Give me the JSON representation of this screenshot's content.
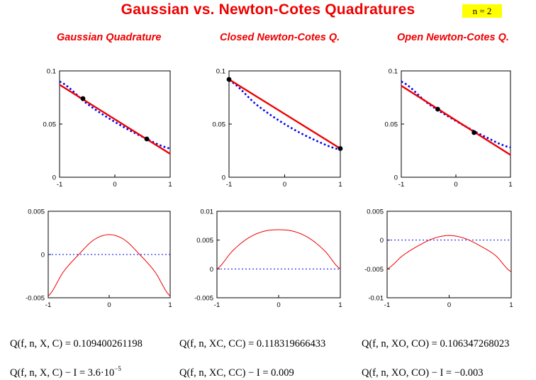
{
  "header": {
    "title": "Gaussian vs. Newton-Cotes Quadratures",
    "n_label": "n = 2"
  },
  "columns": [
    {
      "title": "Gaussian Quadrature",
      "formula_value": "Q(f, n, X, C) = 0.109400261198",
      "formula_error_prefix": "Q(f, n, X, C) − I = 3.6·10",
      "formula_error_exp": "−5"
    },
    {
      "title": "Closed Newton-Cotes Q.",
      "formula_value": "Q(f, n, XC, CC) = 0.118319666433",
      "formula_error_prefix": "Q(f, n, XC, CC) − I = 0.009",
      "formula_error_exp": ""
    },
    {
      "title": "Open Newton-Cotes Q.",
      "formula_value": "Q(f, n, XO, CO) = 0.106347268023",
      "formula_error_prefix": "Q(f, n, XO, CO) − I = −0.003",
      "formula_error_exp": ""
    }
  ],
  "colors": {
    "title": "#ee0000",
    "badge": "#ffff00",
    "approximation_line": "#ee0000",
    "function_dotted": "#0000ee",
    "error_curve": "#ee0000",
    "zero_line": "#0000ee",
    "node_marker": "#000000"
  },
  "chart_data": [
    {
      "type": "line",
      "panel": "gaussian-top",
      "xlim": [
        -1,
        1
      ],
      "ylim": [
        0,
        0.1
      ],
      "xticks": [
        "-1",
        "0",
        "1"
      ],
      "yticks": [
        "0",
        "0.05",
        "0.1"
      ],
      "series": [
        {
          "style": "dotted",
          "x": [
            -1,
            -0.5,
            0,
            0.5,
            1
          ],
          "y": [
            0.09,
            0.069,
            0.052,
            0.038,
            0.027
          ]
        },
        {
          "style": "solid",
          "x": [
            -1,
            1
          ],
          "y": [
            0.087,
            0.022
          ]
        }
      ],
      "nodes": {
        "x": [
          -0.577,
          0.577
        ],
        "y": [
          0.074,
          0.036
        ]
      }
    },
    {
      "type": "line",
      "panel": "closed-top",
      "xlim": [
        -1,
        1
      ],
      "ylim": [
        0,
        0.1
      ],
      "xticks": [
        "-1",
        "0",
        "1"
      ],
      "yticks": [
        "0",
        "0.05",
        "0.1"
      ],
      "series": [
        {
          "style": "dotted",
          "x": [
            -1,
            -0.5,
            0,
            0.5,
            1
          ],
          "y": [
            0.091,
            0.068,
            0.05,
            0.036,
            0.026
          ]
        },
        {
          "style": "solid",
          "x": [
            -1,
            1
          ],
          "y": [
            0.092,
            0.027
          ]
        }
      ],
      "nodes": {
        "x": [
          -1,
          1
        ],
        "y": [
          0.092,
          0.027
        ]
      }
    },
    {
      "type": "line",
      "panel": "open-top",
      "xlim": [
        -1,
        1
      ],
      "ylim": [
        0,
        0.1
      ],
      "xticks": [
        "-1",
        "0",
        "1"
      ],
      "yticks": [
        "0",
        "0.05",
        "0.1"
      ],
      "series": [
        {
          "style": "dotted",
          "x": [
            -1,
            -0.5,
            0,
            0.5,
            1
          ],
          "y": [
            0.09,
            0.069,
            0.053,
            0.039,
            0.028
          ]
        },
        {
          "style": "solid",
          "x": [
            -1,
            1
          ],
          "y": [
            0.086,
            0.021
          ]
        }
      ],
      "nodes": {
        "x": [
          -0.333,
          0.333
        ],
        "y": [
          0.064,
          0.042
        ]
      }
    },
    {
      "type": "line",
      "panel": "gaussian-bottom",
      "xlim": [
        -1,
        1
      ],
      "ylim": [
        -0.005,
        0.005
      ],
      "xticks": [
        "-1",
        "0",
        "1"
      ],
      "yticks": [
        "-0.005",
        "0",
        "0.005"
      ],
      "series": [
        {
          "style": "dotted",
          "x": [
            -1,
            1
          ],
          "y": [
            0,
            0
          ]
        },
        {
          "style": "solid",
          "x": [
            -1,
            -0.75,
            -0.5,
            -0.25,
            0,
            0.25,
            0.5,
            0.75,
            1
          ],
          "y": [
            -0.0048,
            -0.002,
            0.0,
            0.0017,
            0.0023,
            0.0017,
            0.0,
            -0.002,
            -0.0048
          ]
        }
      ]
    },
    {
      "type": "line",
      "panel": "closed-bottom",
      "xlim": [
        -1,
        1
      ],
      "ylim": [
        -0.005,
        0.01
      ],
      "xticks": [
        "-1",
        "0",
        "1"
      ],
      "yticks": [
        "-0.005",
        "0",
        "0.005",
        "0.01"
      ],
      "series": [
        {
          "style": "dotted",
          "x": [
            -1,
            1
          ],
          "y": [
            0,
            0
          ]
        },
        {
          "style": "solid",
          "x": [
            -1,
            -0.75,
            -0.5,
            -0.25,
            0,
            0.25,
            0.5,
            0.75,
            1
          ],
          "y": [
            0.0,
            0.0031,
            0.0053,
            0.0065,
            0.0068,
            0.0065,
            0.0053,
            0.0031,
            0.0
          ]
        }
      ]
    },
    {
      "type": "line",
      "panel": "open-bottom",
      "xlim": [
        -1,
        1
      ],
      "ylim": [
        -0.01,
        0.005
      ],
      "xticks": [
        "-1",
        "0",
        "1"
      ],
      "yticks": [
        "-0.01",
        "-0.005",
        "0",
        "0.005"
      ],
      "series": [
        {
          "style": "dotted",
          "x": [
            -1,
            1
          ],
          "y": [
            0,
            0
          ]
        },
        {
          "style": "solid",
          "x": [
            -1,
            -0.75,
            -0.5,
            -0.25,
            0,
            0.25,
            0.5,
            0.75,
            1
          ],
          "y": [
            -0.005,
            -0.0027,
            -0.001,
            0.0003,
            0.0008,
            0.0003,
            -0.001,
            -0.0027,
            -0.0055
          ]
        }
      ]
    }
  ]
}
